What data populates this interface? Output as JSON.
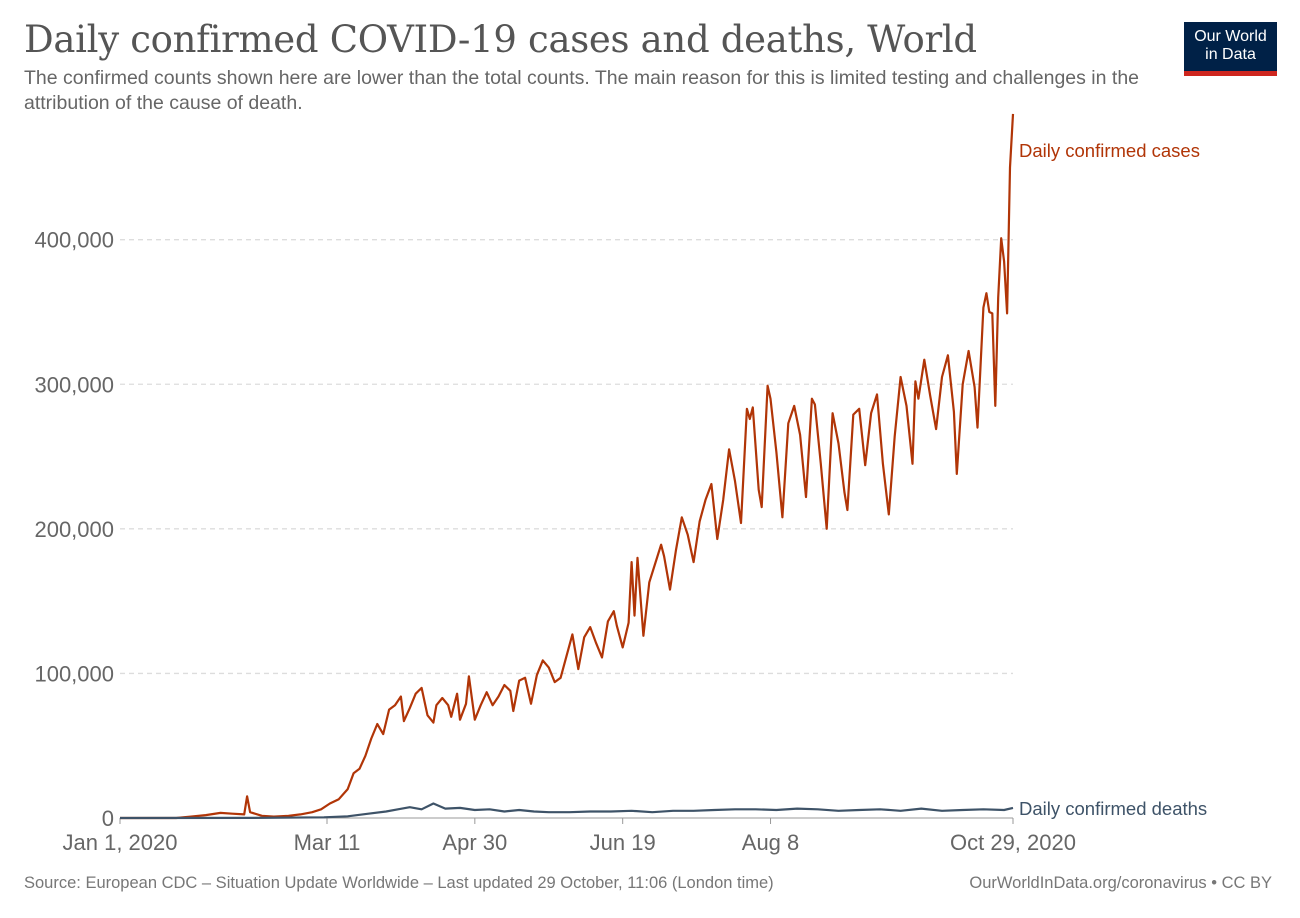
{
  "header": {
    "title": "Daily confirmed COVID-19 cases and deaths, World",
    "subtitle": "The confirmed counts shown here are lower than the total counts. The main reason for this is limited testing and challenges in the attribution of the cause of death.",
    "logo_line1": "Our World",
    "logo_line2": "in Data"
  },
  "footer": {
    "source": "Source: European CDC – Situation Update Worldwide – Last updated 29 October, 11:06 (London time)",
    "credit": "OurWorldInData.org/coronavirus • CC BY"
  },
  "colors": {
    "cases": "#b13507",
    "deaths": "#3e5368",
    "grid": "#dddddd",
    "text": "#666666",
    "logo_bg": "#002147",
    "logo_bar": "#ce261e"
  },
  "chart_data": {
    "type": "line",
    "title": "Daily confirmed COVID-19 cases and deaths, World",
    "x_start": "Jan 1, 2020",
    "x_end": "Oct 29, 2020",
    "ylim": [
      0,
      480000
    ],
    "yticks": [
      0,
      100000,
      200000,
      300000,
      400000
    ],
    "ytick_labels": [
      "0",
      "100,000",
      "200,000",
      "300,000",
      "400,000"
    ],
    "xticks": [
      {
        "date": "2020-01-01",
        "label": "Jan 1, 2020"
      },
      {
        "date": "2020-03-11",
        "label": "Mar 11"
      },
      {
        "date": "2020-04-30",
        "label": "Apr 30"
      },
      {
        "date": "2020-06-19",
        "label": "Jun 19"
      },
      {
        "date": "2020-08-08",
        "label": "Aug 8"
      },
      {
        "date": "2020-10-29",
        "label": "Oct 29, 2020"
      }
    ],
    "grid": "horizontal dashed",
    "legend": "line-end labels",
    "series": [
      {
        "name": "Daily confirmed cases",
        "points": [
          [
            "2020-01-01",
            0
          ],
          [
            "2020-01-20",
            0
          ],
          [
            "2020-01-25",
            1000
          ],
          [
            "2020-01-30",
            2000
          ],
          [
            "2020-02-04",
            3500
          ],
          [
            "2020-02-08",
            3000
          ],
          [
            "2020-02-12",
            2500
          ],
          [
            "2020-02-13",
            15000
          ],
          [
            "2020-02-14",
            4000
          ],
          [
            "2020-02-18",
            1500
          ],
          [
            "2020-02-22",
            1000
          ],
          [
            "2020-02-27",
            1500
          ],
          [
            "2020-03-02",
            2500
          ],
          [
            "2020-03-06",
            4000
          ],
          [
            "2020-03-09",
            6000
          ],
          [
            "2020-03-12",
            10000
          ],
          [
            "2020-03-15",
            13000
          ],
          [
            "2020-03-18",
            20000
          ],
          [
            "2020-03-20",
            31000
          ],
          [
            "2020-03-22",
            34000
          ],
          [
            "2020-03-24",
            43000
          ],
          [
            "2020-03-26",
            55000
          ],
          [
            "2020-03-28",
            65000
          ],
          [
            "2020-03-30",
            58000
          ],
          [
            "2020-04-01",
            75000
          ],
          [
            "2020-04-03",
            78000
          ],
          [
            "2020-04-05",
            84000
          ],
          [
            "2020-04-06",
            67000
          ],
          [
            "2020-04-08",
            76000
          ],
          [
            "2020-04-10",
            86000
          ],
          [
            "2020-04-12",
            90000
          ],
          [
            "2020-04-14",
            71000
          ],
          [
            "2020-04-16",
            66000
          ],
          [
            "2020-04-17",
            78000
          ],
          [
            "2020-04-19",
            83000
          ],
          [
            "2020-04-21",
            78000
          ],
          [
            "2020-04-22",
            70000
          ],
          [
            "2020-04-24",
            86000
          ],
          [
            "2020-04-25",
            68000
          ],
          [
            "2020-04-27",
            79000
          ],
          [
            "2020-04-28",
            98000
          ],
          [
            "2020-04-30",
            68000
          ],
          [
            "2020-05-02",
            78000
          ],
          [
            "2020-05-04",
            87000
          ],
          [
            "2020-05-06",
            78000
          ],
          [
            "2020-05-08",
            84000
          ],
          [
            "2020-05-10",
            92000
          ],
          [
            "2020-05-12",
            88000
          ],
          [
            "2020-05-13",
            74000
          ],
          [
            "2020-05-15",
            95000
          ],
          [
            "2020-05-17",
            97000
          ],
          [
            "2020-05-19",
            79000
          ],
          [
            "2020-05-21",
            99000
          ],
          [
            "2020-05-23",
            109000
          ],
          [
            "2020-05-25",
            104000
          ],
          [
            "2020-05-27",
            94000
          ],
          [
            "2020-05-29",
            97000
          ],
          [
            "2020-05-31",
            112000
          ],
          [
            "2020-06-02",
            127000
          ],
          [
            "2020-06-04",
            103000
          ],
          [
            "2020-06-06",
            125000
          ],
          [
            "2020-06-08",
            132000
          ],
          [
            "2020-06-10",
            121000
          ],
          [
            "2020-06-12",
            111000
          ],
          [
            "2020-06-14",
            136000
          ],
          [
            "2020-06-16",
            143000
          ],
          [
            "2020-06-17",
            133000
          ],
          [
            "2020-06-19",
            118000
          ],
          [
            "2020-06-21",
            135000
          ],
          [
            "2020-06-22",
            177000
          ],
          [
            "2020-06-23",
            140000
          ],
          [
            "2020-06-24",
            180000
          ],
          [
            "2020-06-26",
            126000
          ],
          [
            "2020-06-28",
            163000
          ],
          [
            "2020-06-30",
            176000
          ],
          [
            "2020-07-02",
            189000
          ],
          [
            "2020-07-03",
            181000
          ],
          [
            "2020-07-05",
            158000
          ],
          [
            "2020-07-07",
            185000
          ],
          [
            "2020-07-09",
            208000
          ],
          [
            "2020-07-11",
            196000
          ],
          [
            "2020-07-13",
            177000
          ],
          [
            "2020-07-15",
            205000
          ],
          [
            "2020-07-17",
            220000
          ],
          [
            "2020-07-19",
            231000
          ],
          [
            "2020-07-21",
            193000
          ],
          [
            "2020-07-23",
            220000
          ],
          [
            "2020-07-25",
            255000
          ],
          [
            "2020-07-27",
            233000
          ],
          [
            "2020-07-29",
            204000
          ],
          [
            "2020-07-31",
            283000
          ],
          [
            "2020-08-01",
            276000
          ],
          [
            "2020-08-02",
            284000
          ],
          [
            "2020-08-04",
            227000
          ],
          [
            "2020-08-05",
            215000
          ],
          [
            "2020-08-07",
            299000
          ],
          [
            "2020-08-08",
            290000
          ],
          [
            "2020-08-10",
            253000
          ],
          [
            "2020-08-12",
            208000
          ],
          [
            "2020-08-14",
            273000
          ],
          [
            "2020-08-16",
            285000
          ],
          [
            "2020-08-18",
            265000
          ],
          [
            "2020-08-20",
            222000
          ],
          [
            "2020-08-22",
            290000
          ],
          [
            "2020-08-23",
            286000
          ],
          [
            "2020-08-25",
            245000
          ],
          [
            "2020-08-27",
            200000
          ],
          [
            "2020-08-29",
            280000
          ],
          [
            "2020-08-31",
            259000
          ],
          [
            "2020-09-02",
            225000
          ],
          [
            "2020-09-03",
            213000
          ],
          [
            "2020-09-05",
            279000
          ],
          [
            "2020-09-07",
            283000
          ],
          [
            "2020-09-09",
            244000
          ],
          [
            "2020-09-11",
            280000
          ],
          [
            "2020-09-13",
            293000
          ],
          [
            "2020-09-15",
            245000
          ],
          [
            "2020-09-17",
            210000
          ],
          [
            "2020-09-19",
            264000
          ],
          [
            "2020-09-21",
            305000
          ],
          [
            "2020-09-23",
            285000
          ],
          [
            "2020-09-25",
            245000
          ],
          [
            "2020-09-26",
            302000
          ],
          [
            "2020-09-27",
            290000
          ],
          [
            "2020-09-29",
            317000
          ],
          [
            "2020-10-01",
            292000
          ],
          [
            "2020-10-03",
            269000
          ],
          [
            "2020-10-05",
            305000
          ],
          [
            "2020-10-07",
            320000
          ],
          [
            "2020-10-09",
            281000
          ],
          [
            "2020-10-10",
            238000
          ],
          [
            "2020-10-12",
            300000
          ],
          [
            "2020-10-14",
            323000
          ],
          [
            "2020-10-16",
            298000
          ],
          [
            "2020-10-17",
            270000
          ],
          [
            "2020-10-19",
            353000
          ],
          [
            "2020-10-20",
            363000
          ],
          [
            "2020-10-21",
            350000
          ],
          [
            "2020-10-22",
            349000
          ],
          [
            "2020-10-23",
            285000
          ],
          [
            "2020-10-24",
            360000
          ],
          [
            "2020-10-25",
            401000
          ],
          [
            "2020-10-26",
            385000
          ],
          [
            "2020-10-27",
            349000
          ],
          [
            "2020-10-28",
            450000
          ],
          [
            "2020-10-29",
            487000
          ]
        ]
      },
      {
        "name": "Daily confirmed deaths",
        "points": [
          [
            "2020-01-01",
            0
          ],
          [
            "2020-02-15",
            100
          ],
          [
            "2020-03-10",
            500
          ],
          [
            "2020-03-18",
            1200
          ],
          [
            "2020-03-25",
            3000
          ],
          [
            "2020-03-31",
            4500
          ],
          [
            "2020-04-04",
            6000
          ],
          [
            "2020-04-08",
            7500
          ],
          [
            "2020-04-12",
            6000
          ],
          [
            "2020-04-16",
            10000
          ],
          [
            "2020-04-20",
            6500
          ],
          [
            "2020-04-25",
            7000
          ],
          [
            "2020-04-30",
            5500
          ],
          [
            "2020-05-05",
            6000
          ],
          [
            "2020-05-10",
            4500
          ],
          [
            "2020-05-15",
            5500
          ],
          [
            "2020-05-20",
            4500
          ],
          [
            "2020-05-25",
            4000
          ],
          [
            "2020-06-01",
            4000
          ],
          [
            "2020-06-08",
            4500
          ],
          [
            "2020-06-15",
            4500
          ],
          [
            "2020-06-22",
            5000
          ],
          [
            "2020-06-29",
            4000
          ],
          [
            "2020-07-06",
            5000
          ],
          [
            "2020-07-13",
            5000
          ],
          [
            "2020-07-20",
            5500
          ],
          [
            "2020-07-27",
            6000
          ],
          [
            "2020-08-03",
            6000
          ],
          [
            "2020-08-10",
            5500
          ],
          [
            "2020-08-17",
            6500
          ],
          [
            "2020-08-24",
            6000
          ],
          [
            "2020-08-31",
            5000
          ],
          [
            "2020-09-07",
            5500
          ],
          [
            "2020-09-14",
            6000
          ],
          [
            "2020-09-21",
            5000
          ],
          [
            "2020-09-28",
            6500
          ],
          [
            "2020-10-05",
            5000
          ],
          [
            "2020-10-12",
            5500
          ],
          [
            "2020-10-19",
            6000
          ],
          [
            "2020-10-26",
            5500
          ],
          [
            "2020-10-29",
            7000
          ]
        ]
      }
    ]
  }
}
